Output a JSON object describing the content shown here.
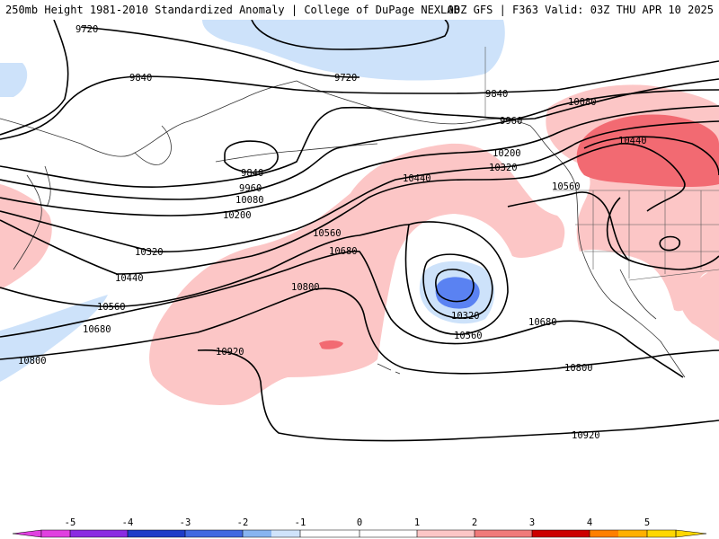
{
  "header": {
    "title": "250mb Height 1981-2010 Standardized Anomaly | College of DuPage NEXLAB",
    "run_info": "00Z GFS | F363 Valid: 03Z THU APR 10 2025"
  },
  "map": {
    "field": "250mb geopotential height",
    "contour_labels": [
      "9720",
      "9720",
      "9840",
      "9840",
      "9840",
      "9960",
      "9960",
      "10080",
      "10080",
      "10200",
      "10200",
      "10320",
      "10320",
      "10320",
      "10440",
      "10440",
      "10440",
      "10560",
      "10560",
      "10560",
      "10560",
      "10680",
      "10680",
      "10680",
      "10800",
      "10800",
      "10800",
      "10920",
      "10920"
    ]
  },
  "colorbar": {
    "ticks": [
      "-5",
      "-4",
      "-3",
      "-2",
      "-1",
      "0",
      "1",
      "2",
      "3",
      "4",
      "5"
    ],
    "colors": [
      "#e040e0",
      "#8a2be2",
      "#1e3cc8",
      "#4169e1",
      "#87b4f0",
      "#cfe3fb",
      "#ffffff",
      "#ffffff",
      "#fcc6c6",
      "#f07a7a",
      "#cc0000",
      "#ff7f00",
      "#ffb000",
      "#ffd700"
    ],
    "positive_color": "#fcc6c6",
    "strong_positive_color": "#f26a72",
    "negative_color": "#c9dff8",
    "strong_negative_color": "#5a82f2"
  }
}
